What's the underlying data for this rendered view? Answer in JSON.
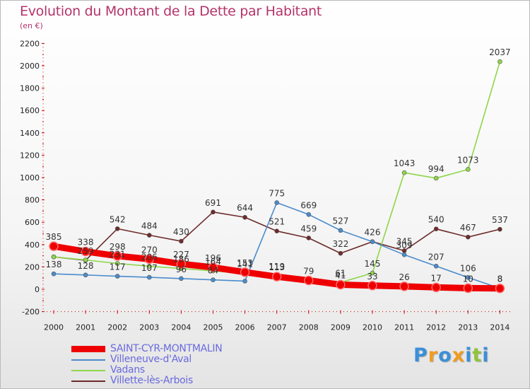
{
  "header": {
    "title": "Evolution du Montant de la Dette par Habitant",
    "unit": "(en €)"
  },
  "logo": {
    "text": "Proxiti",
    "colors": [
      "#3a8fd8",
      "#f29b1d",
      "#3a8fd8",
      "#f29b1d",
      "#3a8fd8",
      "#8fc43b",
      "#3a8fd8"
    ]
  },
  "chart_data": {
    "type": "line",
    "title": "Evolution du Montant de la Dette par Habitant",
    "subtitle": "(en €)",
    "categories": [
      "2000",
      "2001",
      "2002",
      "2003",
      "2004",
      "2005",
      "2006",
      "2007",
      "2008",
      "2009",
      "2010",
      "2011",
      "2012",
      "2013",
      "2014"
    ],
    "ylim": [
      -200,
      2200
    ],
    "yticks": [
      -200,
      0,
      200,
      400,
      600,
      800,
      1000,
      1200,
      1400,
      1600,
      1800,
      2000,
      2200
    ],
    "grid": false,
    "legend_position": "bottom-left",
    "series": [
      {
        "name": "SAINT-CYR-MONTMALIN",
        "color": "#ee0000",
        "values": [
          385,
          338,
          298,
          270,
          227,
          196,
          153,
          113,
          79,
          41,
          33,
          26,
          17,
          10,
          8
        ]
      },
      {
        "name": "Villeneuve-d'Aval",
        "color": "#4a8ccc",
        "values": [
          138,
          128,
          117,
          107,
          96,
          84,
          73,
          775,
          669,
          527,
          426,
          309,
          207,
          106,
          8
        ],
        "labels": [
          "138",
          "128",
          "117",
          "107",
          "96",
          "84",
          "",
          "775",
          "669",
          "527",
          "426",
          "309",
          "207",
          "106",
          "8"
        ]
      },
      {
        "name": "Vadans",
        "color": "#8ed64a",
        "values": [
          290,
          262,
          231,
          206,
          186,
          164,
          141,
          119,
          90,
          61,
          145,
          1043,
          994,
          1073,
          2037
        ],
        "labels": [
          "",
          "",
          "231",
          "206",
          "186",
          "164",
          "141",
          "119",
          "",
          "61",
          "145",
          "1043",
          "994",
          "1073",
          "2037"
        ]
      },
      {
        "name": "Villette-lès-Arbois",
        "color": "#6e2b2b",
        "values": [
          290,
          259,
          542,
          484,
          430,
          691,
          644,
          521,
          459,
          322,
          426,
          345,
          540,
          467,
          537
        ],
        "labels": [
          "",
          "259",
          "542",
          "484",
          "430",
          "691",
          "644",
          "521",
          "459",
          "322",
          "",
          "345",
          "540",
          "467",
          "537"
        ]
      },
      {
        "name": "SAINT-CYR-MONTMALIN-labels",
        "labels": [
          "385",
          "338",
          "298",
          "270",
          "227",
          "196",
          "153",
          "113",
          "79",
          "41",
          "33",
          "26",
          "17",
          "10",
          "8"
        ]
      }
    ]
  }
}
